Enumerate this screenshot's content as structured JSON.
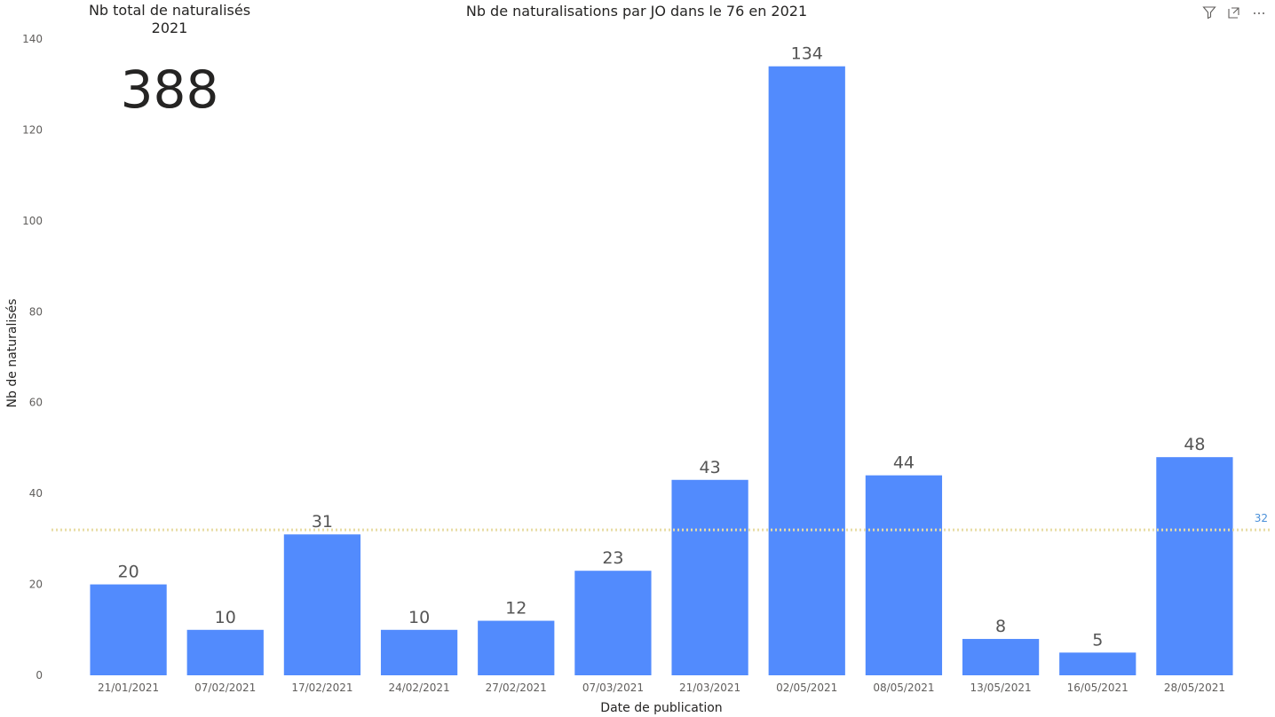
{
  "card": {
    "title": "Nb total de naturalisés\n2021",
    "value": "388"
  },
  "header_icons": [
    "filter-icon",
    "focus-mode-icon",
    "more-options-icon"
  ],
  "colors": {
    "bar": "#528bfd",
    "reference_line": "#e8dca4",
    "reference_label": "#4a90d9"
  },
  "chart_data": {
    "type": "bar",
    "title": "Nb de naturalisations par JO dans le 76 en 2021",
    "xlabel": "Date de publication",
    "ylabel": "Nb de naturalisés",
    "ylim": [
      0,
      140
    ],
    "yticks": [
      0,
      20,
      40,
      60,
      80,
      100,
      120,
      140
    ],
    "categories": [
      "21/01/2021",
      "07/02/2021",
      "17/02/2021",
      "24/02/2021",
      "27/02/2021",
      "07/03/2021",
      "21/03/2021",
      "02/05/2021",
      "08/05/2021",
      "13/05/2021",
      "16/05/2021",
      "28/05/2021"
    ],
    "values": [
      20,
      10,
      31,
      10,
      12,
      23,
      43,
      134,
      44,
      8,
      5,
      48
    ],
    "reference_line": {
      "value": 32,
      "label": "32",
      "style": "dotted"
    },
    "grid": false,
    "legend": "none"
  }
}
